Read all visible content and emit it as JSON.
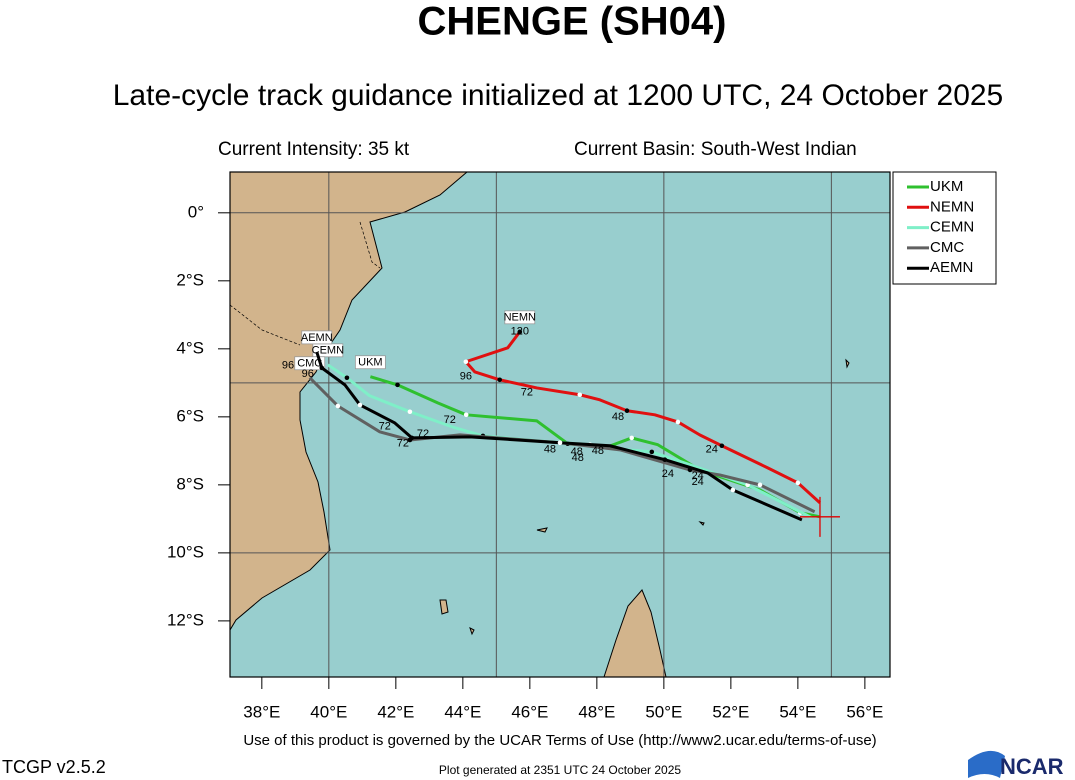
{
  "title": "CHENGE (SH04)",
  "subtitle": "Late-cycle track guidance initialized at 1200 UTC, 24 October 2025",
  "intensity": "Current Intensity: 35 kt",
  "basin": "Current Basin: South-West Indian",
  "footer": {
    "terms": "Use of this product is governed by the UCAR Terms of Use (http://www2.ucar.edu/terms-of-use)",
    "version": "TCGP v2.5.2",
    "generated": "Plot generated at 2351 UTC   24 October 2025",
    "logo": "NCAR"
  },
  "map": {
    "xlim": [
      37.05,
      56.75
    ],
    "ylim": [
      -13.65,
      1.2
    ],
    "xticks": [
      {
        "value": 38,
        "label": "38°E"
      },
      {
        "value": 40,
        "label": "40°E"
      },
      {
        "value": 42,
        "label": "42°E"
      },
      {
        "value": 44,
        "label": "44°E"
      },
      {
        "value": 46,
        "label": "46°E"
      },
      {
        "value": 48,
        "label": "48°E"
      },
      {
        "value": 50,
        "label": "50°E"
      },
      {
        "value": 52,
        "label": "52°E"
      },
      {
        "value": 54,
        "label": "54°E"
      },
      {
        "value": 56,
        "label": "56°E"
      }
    ],
    "yticks": [
      {
        "value": 0,
        "label": "0°"
      },
      {
        "value": -2,
        "label": "2°S"
      },
      {
        "value": -4,
        "label": "4°S"
      },
      {
        "value": -6,
        "label": "6°S"
      },
      {
        "value": -8,
        "label": "8°S"
      },
      {
        "value": -10,
        "label": "10°S"
      },
      {
        "value": -12,
        "label": "12°S"
      }
    ],
    "xgrid": [
      40,
      45,
      50,
      55
    ],
    "ygrid": [
      0,
      -5,
      -10
    ],
    "current_position": {
      "lon": 54.66,
      "lat": -8.94,
      "color": "#e00000"
    },
    "tracks": [
      {
        "name": "UKM",
        "color": "#2fc02f",
        "lon": [
          54.66,
          54.07,
          52.87,
          51.07,
          49.82,
          49.04,
          48.33,
          47.13,
          46.21,
          44.1,
          43.25,
          42.05,
          41.24
        ],
        "lat": [
          -8.94,
          -8.82,
          -8.15,
          -7.56,
          -6.82,
          -6.62,
          -6.88,
          -6.79,
          -6.12,
          -5.94,
          -5.59,
          -5.06,
          -4.82
        ],
        "hour_labels": [
          {
            "text": "24",
            "lon": 50.12,
            "lat": -7.68
          },
          {
            "text": "48",
            "lon": 47.4,
            "lat": -7.03
          },
          {
            "text": "72",
            "lon": 43.61,
            "lat": -6.09
          }
        ]
      },
      {
        "name": "NEMN",
        "color": "#e01010",
        "lon": [
          54.66,
          54.0,
          53.1,
          51.73,
          51.07,
          50.42,
          49.73,
          48.9,
          48.09,
          47.49,
          46.21,
          45.1,
          44.36,
          44.09,
          45.34,
          45.7
        ],
        "lat": [
          -8.53,
          -7.94,
          -7.5,
          -6.85,
          -6.53,
          -6.15,
          -5.94,
          -5.82,
          -5.5,
          -5.35,
          -5.15,
          -4.91,
          -4.68,
          -4.38,
          -3.97,
          -3.5
        ],
        "hour_labels": [
          {
            "text": "24",
            "lon": 51.43,
            "lat": -6.97
          },
          {
            "text": "48",
            "lon": 48.63,
            "lat": -6.0
          },
          {
            "text": "72",
            "lon": 45.91,
            "lat": -5.29
          },
          {
            "text": "96",
            "lon": 44.09,
            "lat": -4.82
          },
          {
            "text": "120",
            "lon": 45.7,
            "lat": -3.5
          }
        ]
      },
      {
        "name": "CEMN",
        "color": "#7fefc8",
        "lon": [
          54.42,
          52.5,
          50.78,
          49.64,
          48.93,
          47.8,
          46.3,
          44.6,
          43.76,
          42.42,
          41.22,
          40.54,
          39.97
        ],
        "lat": [
          -8.97,
          -8.0,
          -7.41,
          -7.03,
          -6.97,
          -6.82,
          -6.71,
          -6.56,
          -6.32,
          -5.85,
          -5.38,
          -4.85,
          -4.47
        ],
        "hour_labels": [
          {
            "text": "48",
            "lon": 46.6,
            "lat": -6.97
          },
          {
            "text": "72",
            "lon": 42.81,
            "lat": -6.5
          }
        ]
      },
      {
        "name": "CMC",
        "color": "#606060",
        "lon": [
          54.5,
          52.87,
          51.67,
          50.78,
          48.69,
          46.9,
          43.91,
          42.42,
          41.52,
          40.27,
          39.43
        ],
        "lat": [
          -8.79,
          -8.0,
          -7.71,
          -7.56,
          -6.97,
          -6.76,
          -6.53,
          -6.68,
          -6.44,
          -5.68,
          -4.85
        ],
        "hour_labels": [
          {
            "text": "24",
            "lon": 51.01,
            "lat": -7.74
          },
          {
            "text": "48",
            "lon": 47.43,
            "lat": -7.21
          },
          {
            "text": "72",
            "lon": 41.67,
            "lat": -6.29
          },
          {
            "text": "96",
            "lon": 38.78,
            "lat": -4.5
          }
        ]
      },
      {
        "name": "AEMN",
        "color": "#000000",
        "lon": [
          54.12,
          52.06,
          51.31,
          50.03,
          48.39,
          46.9,
          44.21,
          42.48,
          41.97,
          40.93,
          40.48,
          39.79,
          39.64
        ],
        "lat": [
          -9.03,
          -8.15,
          -7.65,
          -7.26,
          -6.85,
          -6.76,
          -6.59,
          -6.62,
          -6.18,
          -5.65,
          -5.06,
          -4.56,
          -4.09
        ],
        "hour_labels": [
          {
            "text": "24",
            "lon": 51.01,
            "lat": -7.92
          },
          {
            "text": "48",
            "lon": 48.03,
            "lat": -7.0
          },
          {
            "text": "72",
            "lon": 42.21,
            "lat": -6.79
          },
          {
            "text": "96",
            "lon": 39.37,
            "lat": -4.74
          }
        ]
      }
    ]
  }
}
